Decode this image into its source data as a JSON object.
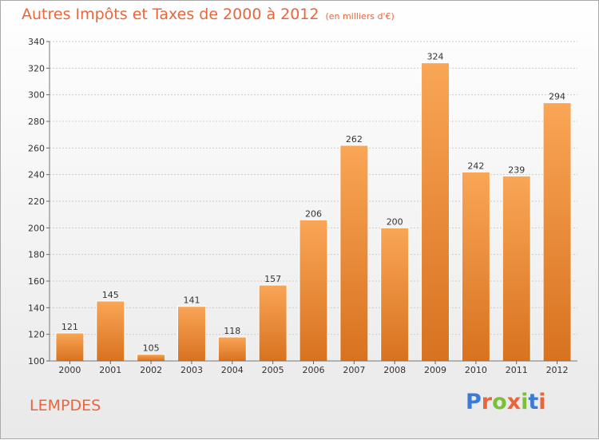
{
  "title": "Autres Impôts et Taxes de 2000 à 2012",
  "unit": "(en milliers d'€)",
  "place": "LEMPDES",
  "logo": {
    "text": "Proxiti",
    "colors": [
      "#3a7bd5",
      "#e8663b",
      "#7bbf3a",
      "#e8663b",
      "#7bbf3a",
      "#3a7bd5",
      "#e8663b"
    ]
  },
  "colors": {
    "bar_light": "#f9a656",
    "bar_dark": "#d8721f",
    "title": "#e8663b",
    "grid": "#cccccc"
  },
  "chart_data": {
    "type": "bar",
    "categories": [
      "2000",
      "2001",
      "2002",
      "2003",
      "2004",
      "2005",
      "2006",
      "2007",
      "2008",
      "2009",
      "2010",
      "2011",
      "2012"
    ],
    "values": [
      121,
      145,
      105,
      141,
      118,
      157,
      206,
      262,
      200,
      324,
      242,
      239,
      294
    ],
    "ylim": [
      100,
      340
    ],
    "yticks": [
      100,
      120,
      140,
      160,
      180,
      200,
      220,
      240,
      260,
      280,
      300,
      320,
      340
    ],
    "grid": true,
    "data_labels": true
  }
}
